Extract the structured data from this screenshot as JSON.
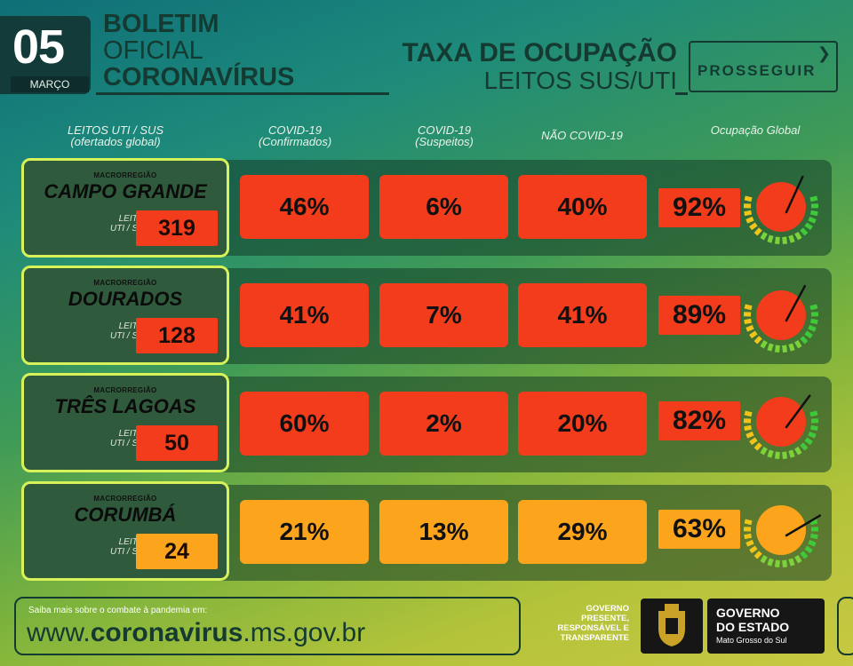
{
  "header": {
    "day": "05",
    "month": "MARÇO",
    "title_line1": "BOLETIM",
    "title_line2": "OFICIAL",
    "title_line3": "CORONAVÍRUS",
    "subtitle_line1": "TAXA DE OCUPAÇÃO",
    "subtitle_line2": "LEITOS SUS/UTI",
    "logo_text": "PROSSEGUIR"
  },
  "columns": {
    "leitos_line1": "LEITOS UTI / SUS",
    "leitos_line2": "(ofertados global)",
    "confirmados_line1": "COVID-19",
    "confirmados_line2": "(Confirmados)",
    "suspeitos_line1": "COVID-19",
    "suspeitos_line2": "(Suspeitos)",
    "nao_covid": "NÃO COVID-19",
    "global": "Ocupação Global"
  },
  "region_label": "MACRORREGIÃO",
  "leitos_label_1": "LEITOS",
  "leitos_label_2": "UTI / SUS",
  "rows": [
    {
      "name": "CAMPO GRANDE",
      "leitos": "319",
      "confirmados": "46%",
      "suspeitos": "6%",
      "nao_covid": "40%",
      "global": "92%",
      "global_value": 92,
      "level": "red"
    },
    {
      "name": "DOURADOS",
      "leitos": "128",
      "confirmados": "41%",
      "suspeitos": "7%",
      "nao_covid": "41%",
      "global": "89%",
      "global_value": 89,
      "level": "red"
    },
    {
      "name": "TRÊS LAGOAS",
      "leitos": "50",
      "confirmados": "60%",
      "suspeitos": "2%",
      "nao_covid": "20%",
      "global": "82%",
      "global_value": 82,
      "level": "red"
    },
    {
      "name": "CORUMBÁ",
      "leitos": "24",
      "confirmados": "21%",
      "suspeitos": "13%",
      "nao_covid": "29%",
      "global": "63%",
      "global_value": 63,
      "level": "orange"
    }
  ],
  "footer": {
    "small_text": "Saiba mais sobre o combate à pandemia em:",
    "url_pre": "www.",
    "url_bold": "coronavirus",
    "url_post": ".ms.gov.br",
    "gov_line1": "GOVERNO",
    "gov_line2": "PRESENTE,",
    "gov_line3": "RESPONSÁVEL E",
    "gov_line4": "TRANSPARENTE",
    "govbox_line1": "GOVERNO",
    "govbox_line2": "DO ESTADO",
    "govbox_line3": "Mato Grosso do Sul"
  },
  "colors": {
    "red": "#f23c1b",
    "orange": "#fba41c",
    "dark": "#143a32"
  }
}
